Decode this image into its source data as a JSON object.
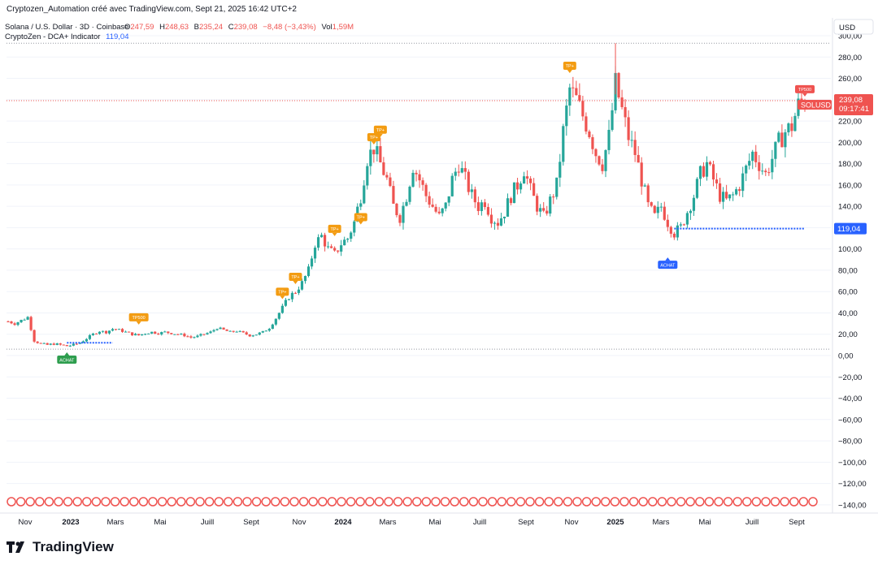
{
  "header": {
    "attribution": "Cryptozen_Automation créé avec TradingView.com, Sept 21, 2025 16:42 UTC+2"
  },
  "legend": {
    "symbol": "Solana / U.S. Dollar · 3D · Coinbase",
    "o_label": "O",
    "o_value": "247,59",
    "h_label": "H",
    "h_value": "248,63",
    "b_label": "B",
    "b_value": "235,24",
    "c_label": "C",
    "c_value": "239,08",
    "change": "−8,48 (−3,43%)",
    "vol_label": "Vol",
    "vol_value": "1,59M",
    "indicator_name": "CryptoZen - DCA+ Indicator",
    "indicator_value": "119,04"
  },
  "currency_button": "USD",
  "price_badge": {
    "price": "239,08",
    "countdown": "09:17:41",
    "symbol": "SOLUSD"
  },
  "dca_badge": "119,04",
  "brand": "TradingView",
  "colors": {
    "up": "#26a69a",
    "down": "#ef5350",
    "tp": "#f39c12",
    "buy_green": "#2e9e4e",
    "buy_blue": "#2962ff",
    "dca_line": "#2962ff"
  },
  "chart_data": {
    "type": "candlestick",
    "title": "Solana / U.S. Dollar · 3D · Coinbase",
    "y_axis": {
      "min": -140,
      "max": 300,
      "ticks": [
        "300,00",
        "280,00",
        "260,00",
        "240,00",
        "220,00",
        "200,00",
        "180,00",
        "160,00",
        "140,00",
        "120,00",
        "100,00",
        "80,00",
        "60,00",
        "40,00",
        "20,00",
        "0,00",
        "−20,00",
        "−40,00",
        "−60,00",
        "−80,00",
        "−100,00",
        "−120,00",
        "−140,00"
      ]
    },
    "x_axis": {
      "labels": [
        {
          "label": "Nov",
          "bold": false
        },
        {
          "label": "2023",
          "bold": true
        },
        {
          "label": "Mars",
          "bold": false
        },
        {
          "label": "Mai",
          "bold": false
        },
        {
          "label": "Juill",
          "bold": false
        },
        {
          "label": "Sept",
          "bold": false
        },
        {
          "label": "Nov",
          "bold": false
        },
        {
          "label": "2024",
          "bold": true
        },
        {
          "label": "Mars",
          "bold": false
        },
        {
          "label": "Mai",
          "bold": false
        },
        {
          "label": "Juill",
          "bold": false
        },
        {
          "label": "Sept",
          "bold": false
        },
        {
          "label": "Nov",
          "bold": false
        },
        {
          "label": "2025",
          "bold": true
        },
        {
          "label": "Mars",
          "bold": false
        },
        {
          "label": "Mai",
          "bold": false
        },
        {
          "label": "Juill",
          "bold": false
        },
        {
          "label": "Sept",
          "bold": false
        }
      ]
    },
    "price_path": [
      [
        0,
        32
      ],
      [
        1,
        30
      ],
      [
        2,
        33
      ],
      [
        3,
        36
      ],
      [
        4,
        14
      ],
      [
        5,
        11
      ],
      [
        6,
        10
      ],
      [
        7,
        11
      ],
      [
        8,
        10
      ],
      [
        9,
        9
      ],
      [
        10,
        10
      ],
      [
        11,
        12
      ],
      [
        12,
        16
      ],
      [
        13,
        20
      ],
      [
        14,
        23
      ],
      [
        15,
        22
      ],
      [
        16,
        25
      ],
      [
        17,
        24
      ],
      [
        18,
        22
      ],
      [
        19,
        20
      ],
      [
        20,
        19
      ],
      [
        21,
        21
      ],
      [
        22,
        22
      ],
      [
        23,
        21
      ],
      [
        24,
        22
      ],
      [
        25,
        21
      ],
      [
        26,
        20
      ],
      [
        27,
        19
      ],
      [
        28,
        17
      ],
      [
        29,
        18
      ],
      [
        30,
        20
      ],
      [
        31,
        22
      ],
      [
        32,
        26
      ],
      [
        33,
        24
      ],
      [
        34,
        22
      ],
      [
        35,
        23
      ],
      [
        36,
        21
      ],
      [
        37,
        19
      ],
      [
        38,
        20
      ],
      [
        39,
        22
      ],
      [
        40,
        26
      ],
      [
        41,
        35
      ],
      [
        42,
        45
      ],
      [
        43,
        55
      ],
      [
        44,
        60
      ],
      [
        45,
        68
      ],
      [
        46,
        80
      ],
      [
        47,
        105
      ],
      [
        48,
        112
      ],
      [
        49,
        100
      ],
      [
        50,
        95
      ],
      [
        51,
        105
      ],
      [
        52,
        110
      ],
      [
        53,
        125
      ],
      [
        54,
        150
      ],
      [
        55,
        185
      ],
      [
        56,
        195
      ],
      [
        57,
        180
      ],
      [
        58,
        165
      ],
      [
        59,
        140
      ],
      [
        60,
        130
      ],
      [
        61,
        150
      ],
      [
        62,
        178
      ],
      [
        63,
        165
      ],
      [
        64,
        150
      ],
      [
        65,
        140
      ],
      [
        66,
        130
      ],
      [
        67,
        140
      ],
      [
        68,
        165
      ],
      [
        69,
        180
      ],
      [
        70,
        165
      ],
      [
        71,
        150
      ],
      [
        72,
        140
      ],
      [
        73,
        145
      ],
      [
        74,
        130
      ],
      [
        75,
        125
      ],
      [
        76,
        135
      ],
      [
        77,
        150
      ],
      [
        78,
        160
      ],
      [
        79,
        175
      ],
      [
        80,
        155
      ],
      [
        81,
        140
      ],
      [
        82,
        130
      ],
      [
        83,
        145
      ],
      [
        84,
        160
      ],
      [
        85,
        210
      ],
      [
        86,
        250
      ],
      [
        87,
        240
      ],
      [
        88,
        225
      ],
      [
        89,
        210
      ],
      [
        90,
        190
      ],
      [
        91,
        180
      ],
      [
        92,
        205
      ],
      [
        93,
        255
      ],
      [
        94,
        230
      ],
      [
        95,
        205
      ],
      [
        96,
        190
      ],
      [
        97,
        165
      ],
      [
        98,
        140
      ],
      [
        99,
        130
      ],
      [
        100,
        140
      ],
      [
        101,
        125
      ],
      [
        102,
        115
      ],
      [
        103,
        120
      ],
      [
        104,
        135
      ],
      [
        105,
        150
      ],
      [
        106,
        170
      ],
      [
        107,
        180
      ],
      [
        108,
        165
      ],
      [
        109,
        150
      ],
      [
        110,
        145
      ],
      [
        111,
        150
      ],
      [
        112,
        160
      ],
      [
        113,
        175
      ],
      [
        114,
        190
      ],
      [
        115,
        180
      ],
      [
        116,
        170
      ],
      [
        117,
        185
      ],
      [
        118,
        200
      ],
      [
        119,
        210
      ],
      [
        120,
        215
      ],
      [
        121,
        235
      ],
      [
        122,
        239
      ]
    ],
    "signals": [
      {
        "type": "tp",
        "label": "TP500",
        "index": 20,
        "price": 29
      },
      {
        "type": "buy",
        "label": "ACHAT",
        "index": 9,
        "price": 3
      },
      {
        "type": "tp",
        "label": "TP+",
        "index": 42,
        "price": 53
      },
      {
        "type": "tp",
        "label": "TP+",
        "index": 44,
        "price": 67
      },
      {
        "type": "tp",
        "label": "TP+",
        "index": 50,
        "price": 112
      },
      {
        "type": "tp",
        "label": "TP+",
        "index": 54,
        "price": 123
      },
      {
        "type": "tp",
        "label": "TP+",
        "index": 56,
        "price": 198
      },
      {
        "type": "tp",
        "label": "TP+",
        "index": 57,
        "price": 205
      },
      {
        "type": "tp",
        "label": "TP+",
        "index": 86,
        "price": 265
      },
      {
        "type": "buy_blue",
        "label": "ACHAT",
        "index": 101,
        "price": 92
      },
      {
        "type": "tp_red",
        "label": "TP500",
        "index": 122,
        "price": 243
      }
    ],
    "dca_lines": [
      {
        "from_index": 9,
        "to_index": 16,
        "price": 12
      },
      {
        "from_index": 102,
        "to_index": 122,
        "price": 119.04
      }
    ],
    "last_price": 239.08,
    "high_reference": 293
  }
}
